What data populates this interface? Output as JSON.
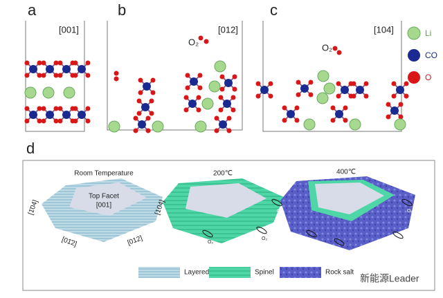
{
  "panels": [
    {
      "label": "a",
      "direction": "[001]"
    },
    {
      "label": "b",
      "direction": "[012]",
      "molecule": "O₂"
    },
    {
      "label": "c",
      "direction": "[104]",
      "molecule": "O₂"
    }
  ],
  "atom_legend": [
    "Li",
    "CO",
    "O"
  ],
  "panel_d": {
    "label": "d",
    "stages": [
      {
        "title": "Room Temperature",
        "facet_label": "Top Facet",
        "facet_index": "[001]",
        "side_labels": [
          "[1̄04]",
          "[01̄2]",
          "[012]"
        ]
      },
      {
        "title": "200℃",
        "side_labels": [
          "[104]"
        ],
        "oxygen": [
          "O₂",
          "O₂"
        ]
      },
      {
        "title": "400℃",
        "oxygen": [
          "O₂",
          "O₂",
          "O₂",
          "O₂",
          "O₂"
        ]
      }
    ],
    "legend": [
      "Layered",
      "Spinel",
      "Rock salt"
    ]
  },
  "watermark": "新能源Leader"
}
